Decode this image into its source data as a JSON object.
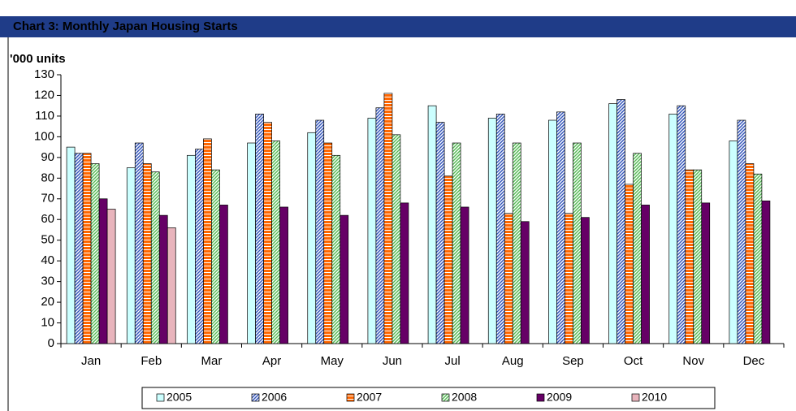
{
  "chart_data": {
    "type": "bar",
    "title": "Chart 3: Monthly Japan Housing Starts",
    "y_axis_label": "'000 units",
    "categories": [
      "Jan",
      "Feb",
      "Mar",
      "Apr",
      "May",
      "Jun",
      "Jul",
      "Aug",
      "Sep",
      "Oct",
      "Nov",
      "Dec"
    ],
    "series": [
      {
        "name": "2005",
        "color": "#ccffff",
        "pattern": "solid",
        "values": [
          95,
          85,
          91,
          97,
          102,
          109,
          115,
          109,
          108,
          116,
          111,
          98
        ]
      },
      {
        "name": "2006",
        "color": "#3355bb",
        "pattern": "diagonal",
        "values": [
          92,
          97,
          94,
          111,
          108,
          114,
          107,
          111,
          112,
          118,
          115,
          108
        ]
      },
      {
        "name": "2007",
        "color": "#ff6600",
        "pattern": "horizontal",
        "values": [
          92,
          87,
          99,
          107,
          97,
          121,
          81,
          63,
          63,
          77,
          84,
          87
        ]
      },
      {
        "name": "2008",
        "color": "#55bb55",
        "pattern": "diagonal",
        "values": [
          87,
          83,
          84,
          98,
          91,
          101,
          97,
          97,
          97,
          92,
          84,
          82
        ]
      },
      {
        "name": "2009",
        "color": "#660066",
        "pattern": "solid",
        "values": [
          70,
          62,
          67,
          66,
          62,
          68,
          66,
          59,
          61,
          67,
          68,
          69
        ]
      },
      {
        "name": "2010",
        "color": "#e8b4bc",
        "pattern": "solid",
        "values": [
          65,
          56,
          null,
          null,
          null,
          null,
          null,
          null,
          null,
          null,
          null,
          null
        ]
      }
    ],
    "ylim": [
      0,
      130
    ],
    "yticks": [
      0,
      10,
      20,
      30,
      40,
      50,
      60,
      70,
      80,
      90,
      100,
      110,
      120,
      130
    ],
    "grid": false
  }
}
